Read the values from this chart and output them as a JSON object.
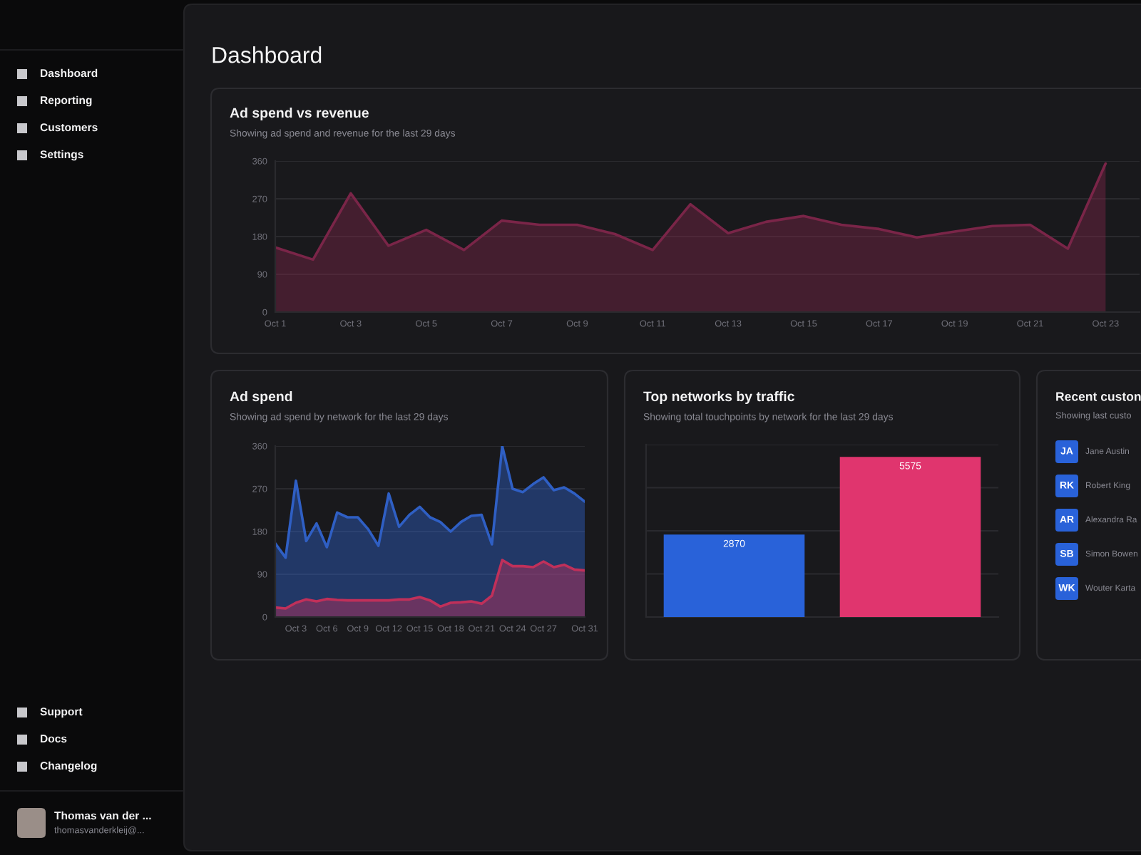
{
  "chart_data": [
    {
      "type": "other",
      "annotations": [
        "Dashboard",
        "Reporting",
        "Customers",
        "Settings",
        "Support",
        "Docs",
        "Changelog",
        "Thomas van der ...",
        "thomasvanderkleij@..."
      ]
    },
    {
      "type": "other",
      "title": "Dashboard"
    },
    {
      "type": "area",
      "title": "Ad spend vs revenue",
      "subtitle": "Showing ad spend and revenue for the last 29 days",
      "categories": [
        "Oct 1",
        null,
        "Oct 3",
        null,
        "Oct 5",
        null,
        "Oct 7",
        null,
        "Oct 9",
        null,
        "Oct 11",
        null,
        "Oct 13",
        null,
        "Oct 15",
        null,
        "Oct 17",
        null,
        "Oct 19",
        null,
        "Oct 21",
        null,
        "Oct 23"
      ],
      "series": [
        {
          "color": "#7a2548",
          "values": [
            154,
            125,
            283,
            158,
            196,
            148,
            218,
            208,
            208,
            186,
            148,
            257,
            188,
            215,
            229,
            208,
            198,
            178,
            192,
            205,
            208,
            151,
            354
          ]
        }
      ],
      "ylim": [
        0,
        360
      ],
      "yticks": [
        0,
        90,
        180,
        270,
        360
      ],
      "grid": "y"
    },
    {
      "type": "area",
      "title": "Ad spend",
      "subtitle": "Showing ad spend by network for the last 29 days",
      "categories": [
        null,
        null,
        "Oct 3",
        null,
        null,
        "Oct 6",
        null,
        null,
        "Oct 9",
        null,
        null,
        "Oct 12",
        null,
        null,
        "Oct 15",
        null,
        null,
        "Oct 18",
        null,
        null,
        "Oct 21",
        null,
        null,
        "Oct 24",
        null,
        null,
        "Oct 27",
        null,
        null,
        null,
        "Oct 31"
      ],
      "series": [
        {
          "color": "#2f5fc4",
          "values": [
            155,
            125,
            287,
            160,
            197,
            147,
            220,
            210,
            210,
            185,
            150,
            260,
            190,
            215,
            232,
            210,
            200,
            180,
            200,
            213,
            215,
            153,
            360,
            270,
            263,
            280,
            294,
            267,
            273,
            260,
            243
          ]
        },
        {
          "color": "#c0305a",
          "values": [
            20,
            18,
            30,
            37,
            33,
            38,
            36,
            35,
            35,
            35,
            35,
            35,
            37,
            37,
            42,
            35,
            22,
            30,
            31,
            33,
            28,
            45,
            120,
            107,
            107,
            105,
            117,
            105,
            110,
            100,
            98
          ]
        }
      ],
      "ylim": [
        0,
        360
      ],
      "yticks": [
        0,
        90,
        180,
        270,
        360
      ],
      "grid": "y"
    },
    {
      "type": "bar",
      "title": "Top networks by traffic",
      "subtitle": "Showing total touchpoints by network for the last 29 days",
      "categories": [
        null,
        null
      ],
      "values": [
        2870,
        5575
      ],
      "colors": [
        "#2962d9",
        "#e0356e"
      ],
      "data_labels": true,
      "ylim": [
        0,
        6000
      ],
      "yticks": [
        {
          "value": 0,
          "label": null
        },
        {
          "value": 1500,
          "label": null
        },
        {
          "value": 3000,
          "label": null
        },
        {
          "value": 4500,
          "label": null
        },
        {
          "value": 6000,
          "label": null
        }
      ],
      "grid": "y"
    },
    {
      "type": "other",
      "title": "Recent custon",
      "subtitle": "Showing last custo",
      "annotations": [
        "JA",
        "Jane Austin",
        "RK",
        "Robert King",
        "AR",
        "Alexandra Ra",
        "SB",
        "Simon Bowen",
        "WK",
        "Wouter Karta"
      ]
    }
  ]
}
